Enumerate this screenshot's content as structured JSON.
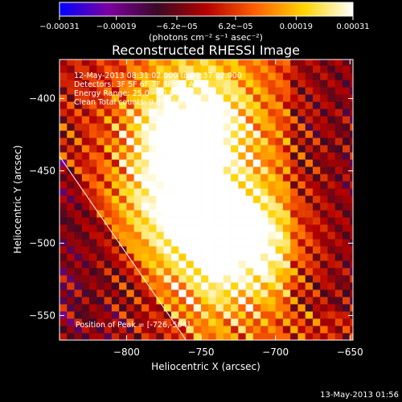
{
  "chart_data": {
    "type": "heatmap",
    "title": "Reconstructed RHESSI Image",
    "xlabel": "Heliocentric X (arcsec)",
    "ylabel": "Heliocentric Y (arcsec)",
    "xlim": [
      -845,
      -648
    ],
    "ylim": [
      -567,
      -373
    ],
    "x_ticks": [
      -800,
      -750,
      -700,
      -650
    ],
    "x_tick_labels": [
      "−800",
      "−750",
      "−700",
      "−650"
    ],
    "y_ticks": [
      -400,
      -450,
      -500,
      -550
    ],
    "y_tick_labels": [
      "−400",
      "−450",
      "−500",
      "−550"
    ],
    "colorbar": {
      "min": -0.00031,
      "max": 0.00031,
      "ticks": [
        -0.00031,
        -0.00019,
        -6.2e-05,
        6.2e-05,
        0.00019,
        0.00031
      ],
      "tick_labels": [
        "−0.00031",
        "−0.00019",
        "−6.2e−05",
        "6.2e−05",
        "0.00019",
        "0.00031"
      ],
      "label": "(photons cm⁻² s⁻¹ asec⁻²)",
      "colormap": [
        "#0000ff",
        "#7d00a0",
        "#3a0a26",
        "#b40000",
        "#ff6000",
        "#ffd400",
        "#ffffff"
      ]
    },
    "info_lines": [
      "12-May-2013 08:31:02.000 to 08:37:02.000",
      "Detectors: 3F 5F 6F 7F 8F 9F, Att 0",
      "Energy Range: 25.0 - 50.0 keV",
      "Clean    Total counts: 9.89E+03"
    ],
    "peak_label": "Position of Peak = [-726,-504]",
    "peak": [
      -726,
      -504
    ],
    "limb_line": [
      [
        -845,
        -440
      ],
      [
        -760,
        -567
      ]
    ],
    "sources": [
      {
        "x": -757,
        "y": -420,
        "intensity": 0.00031
      },
      {
        "x": -725,
        "y": -501,
        "intensity": 0.00031
      },
      {
        "x": -770,
        "y": -470,
        "intensity": 0.00019
      }
    ]
  },
  "footer": {
    "timestamp": "13-May-2013 01:56"
  }
}
